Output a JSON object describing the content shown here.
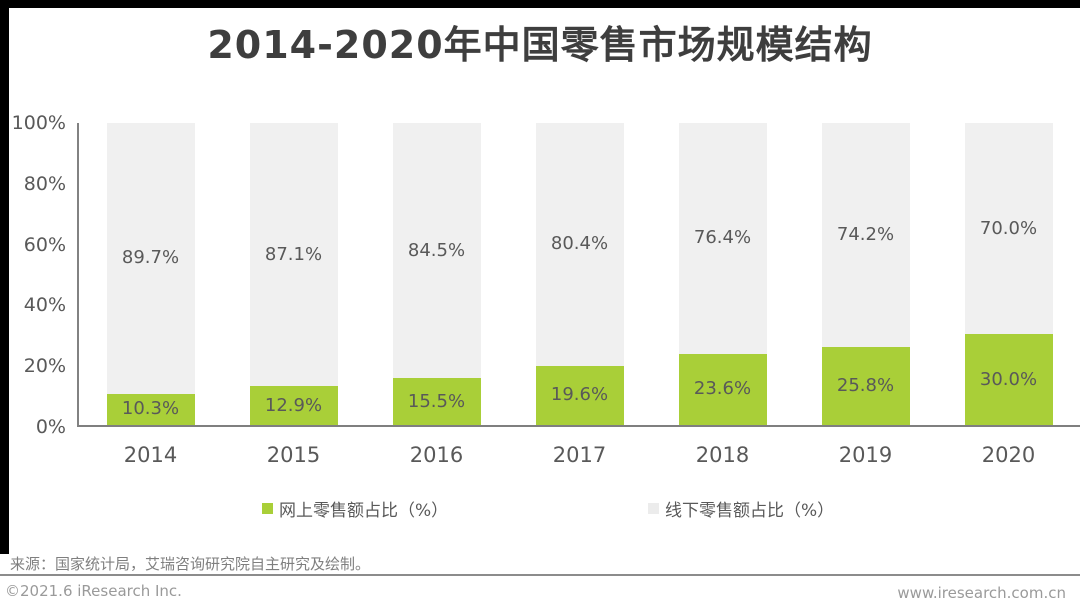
{
  "page": {
    "title": "2014-2020年中国零售市场规模结构",
    "source_note": "来源：国家统计局，艾瑞咨询研究院自主研究及绘制。",
    "copyright": "©2021.6 iResearch Inc.",
    "website": "www.iresearch.com.cn"
  },
  "colors": {
    "online_green": "#a9cf38",
    "offline_gray": "#f0f0f0",
    "legend_gray_swatch": "#ececec",
    "axis_line": "#7f7f7f",
    "value_label_text": "#595959",
    "title_text": "#3e3e3e",
    "border_black": "#000000"
  },
  "legend": [
    {
      "label": "网上零售额占比（%）",
      "color": "#a9cf38"
    },
    {
      "label": "线下零售额占比（%）",
      "color": "#ececec"
    }
  ],
  "chart_data": {
    "type": "bar",
    "stacked": true,
    "title": "2014-2020年中国零售市场规模结构",
    "categories": [
      "2014",
      "2015",
      "2016",
      "2017",
      "2018",
      "2019",
      "2020"
    ],
    "series": [
      {
        "name": "网上零售额占比（%）",
        "color": "#a9cf38",
        "values": [
          10.3,
          12.9,
          15.5,
          19.6,
          23.6,
          25.8,
          30.0
        ],
        "labels": [
          "10.3%",
          "12.9%",
          "15.5%",
          "19.6%",
          "23.6%",
          "25.8%",
          "30.0%"
        ]
      },
      {
        "name": "线下零售额占比（%）",
        "color": "#f0f0f0",
        "values": [
          89.7,
          87.1,
          84.5,
          80.4,
          76.4,
          74.2,
          70.0
        ],
        "labels": [
          "89.7%",
          "87.1%",
          "84.5%",
          "80.4%",
          "76.4%",
          "74.2%",
          "70.0%"
        ]
      }
    ],
    "y_ticks": [
      "100%",
      "80%",
      "60%",
      "40%",
      "20%",
      "0%"
    ],
    "ylim": [
      0,
      100
    ],
    "xlabel": "",
    "ylabel": "",
    "grid": false,
    "legend_position": "bottom"
  }
}
